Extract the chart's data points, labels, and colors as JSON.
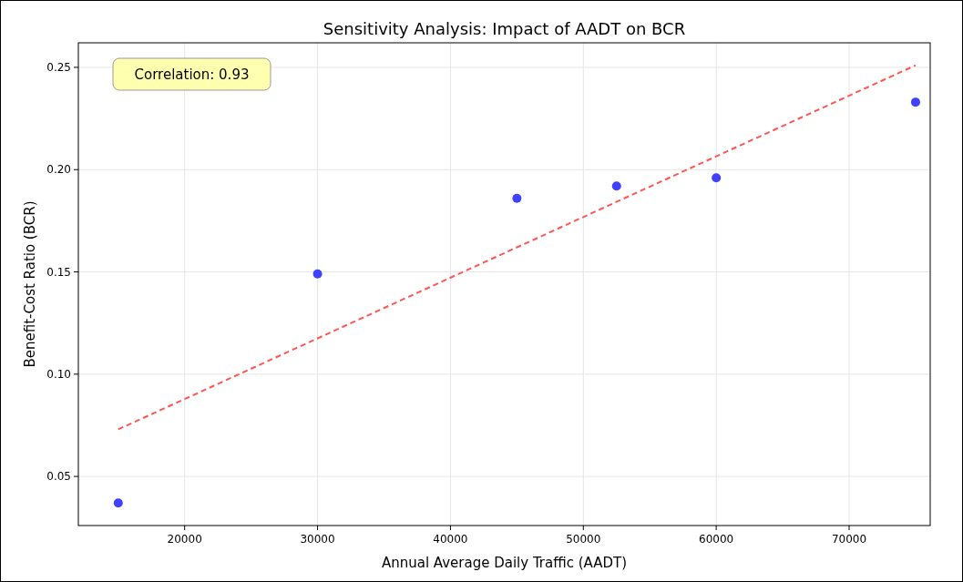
{
  "chart_data": {
    "type": "scatter",
    "title": "Sensitivity Analysis: Impact of AADT on BCR",
    "xlabel": "Annual Average Daily Traffic (AADT)",
    "ylabel": "Benefit-Cost Ratio (BCR)",
    "annotations": [
      "Correlation: 0.93"
    ],
    "xlim": [
      12000,
      76100
    ],
    "xticks": [
      20000,
      30000,
      40000,
      50000,
      60000,
      70000
    ],
    "ylim": [
      0.026,
      0.262
    ],
    "yticks": [
      {
        "value": 0.05,
        "label": "0.05"
      },
      {
        "value": 0.1,
        "label": "0.10"
      },
      {
        "value": 0.15,
        "label": "0.15"
      },
      {
        "value": 0.2,
        "label": "0.20"
      },
      {
        "value": 0.25,
        "label": "0.25"
      }
    ],
    "grid": true,
    "series": [
      {
        "color": "#4040ff",
        "marker": "circle",
        "x": [
          15000,
          30000,
          45000,
          52500,
          60000,
          75000
        ],
        "values": [
          0.037,
          0.149,
          0.186,
          0.192,
          0.196,
          0.233
        ]
      },
      {
        "type": "line",
        "color": "#ff5555",
        "line_style": "dashed",
        "x": [
          15000,
          75000
        ],
        "values": [
          0.073,
          0.251
        ]
      }
    ]
  }
}
